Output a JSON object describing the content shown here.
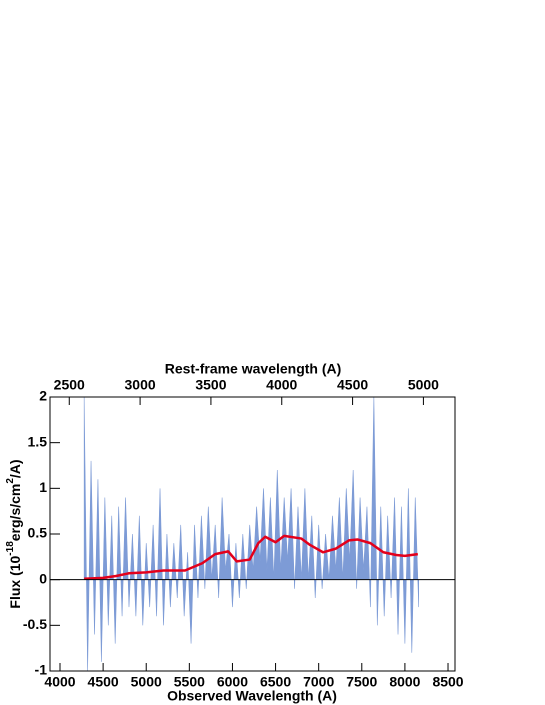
{
  "chart_data": {
    "type": "area",
    "title": "Rest-frame wavelength (A)",
    "xlabel": "Observed Wavelength (A)",
    "ylabel": [
      "Flux (10",
      "-18",
      "erg/s/cm",
      "2",
      "/A)"
    ],
    "xlim": [
      3884,
      8581
    ],
    "xticks": [
      4000,
      4500,
      5000,
      5500,
      6000,
      6500,
      7000,
      7500,
      8000,
      8500
    ],
    "x2lim": [
      2364,
      5223
    ],
    "x2ticks": [
      2500,
      3000,
      3500,
      4000,
      4500,
      5000
    ],
    "ylim": [
      -1,
      2
    ],
    "yticks": [
      -1,
      -0.5,
      0,
      0.5,
      1,
      1.5,
      2
    ],
    "zero_line": true,
    "series": [
      {
        "color": "#7d9bd6",
        "x": [
          4280,
          4320,
          4360,
          4400,
          4440,
          4480,
          4520,
          4560,
          4600,
          4640,
          4680,
          4720,
          4760,
          4800,
          4840,
          4880,
          4920,
          4960,
          5000,
          5040,
          5080,
          5120,
          5160,
          5200,
          5240,
          5280,
          5320,
          5360,
          5400,
          5440,
          5480,
          5520,
          5560,
          5600,
          5640,
          5680,
          5720,
          5760,
          5800,
          5840,
          5880,
          5920,
          5960,
          6000,
          6040,
          6080,
          6120,
          6160,
          6200,
          6240,
          6280,
          6320,
          6360,
          6400,
          6440,
          6480,
          6520,
          6560,
          6600,
          6640,
          6680,
          6720,
          6760,
          6800,
          6840,
          6880,
          6920,
          6960,
          7000,
          7040,
          7080,
          7120,
          7160,
          7200,
          7240,
          7280,
          7320,
          7360,
          7400,
          7440,
          7480,
          7520,
          7560,
          7600,
          7640,
          7680,
          7720,
          7760,
          7800,
          7840,
          7880,
          7920,
          7960,
          8000,
          8040,
          8080,
          8120,
          8160
        ],
        "values": [
          2.0,
          -1.0,
          1.3,
          -0.6,
          1.1,
          -0.9,
          0.9,
          -0.5,
          0.7,
          -0.7,
          0.8,
          -0.4,
          0.9,
          -0.3,
          0.5,
          -0.4,
          0.7,
          -0.5,
          0.4,
          -0.3,
          0.6,
          -0.4,
          1.0,
          -0.5,
          0.5,
          -0.3,
          0.4,
          -0.2,
          0.6,
          -0.4,
          0.3,
          -0.7,
          0.6,
          -0.2,
          0.7,
          -0.1,
          0.8,
          0.0,
          0.6,
          -0.2,
          0.9,
          0.1,
          0.5,
          -0.3,
          0.4,
          -0.2,
          0.5,
          -0.1,
          0.6,
          0.1,
          0.8,
          0.2,
          1.0,
          0.1,
          0.9,
          0.0,
          1.2,
          0.1,
          0.9,
          0.2,
          1.0,
          -0.1,
          0.8,
          0.0,
          1.0,
          0.0,
          0.7,
          -0.2,
          0.6,
          -0.1,
          0.5,
          0.0,
          0.7,
          0.1,
          0.9,
          0.0,
          1.0,
          0.2,
          1.2,
          -0.1,
          0.9,
          0.1,
          0.8,
          -0.3,
          2.0,
          -0.5,
          0.8,
          -0.4,
          0.7,
          -0.2,
          0.9,
          -0.6,
          0.8,
          -0.7,
          1.0,
          -0.8,
          0.9,
          -0.3
        ]
      },
      {
        "color": "#e3001b",
        "x": [
          4280,
          4500,
          4650,
          4800,
          5000,
          5200,
          5450,
          5650,
          5800,
          5950,
          6050,
          6200,
          6300,
          6380,
          6500,
          6600,
          6800,
          6900,
          7050,
          7200,
          7350,
          7450,
          7600,
          7750,
          7900,
          8000,
          8150
        ],
        "values": [
          0.01,
          0.02,
          0.04,
          0.07,
          0.08,
          0.1,
          0.1,
          0.18,
          0.28,
          0.31,
          0.2,
          0.22,
          0.4,
          0.47,
          0.41,
          0.48,
          0.45,
          0.38,
          0.3,
          0.34,
          0.43,
          0.44,
          0.4,
          0.3,
          0.27,
          0.26,
          0.28
        ]
      }
    ]
  }
}
